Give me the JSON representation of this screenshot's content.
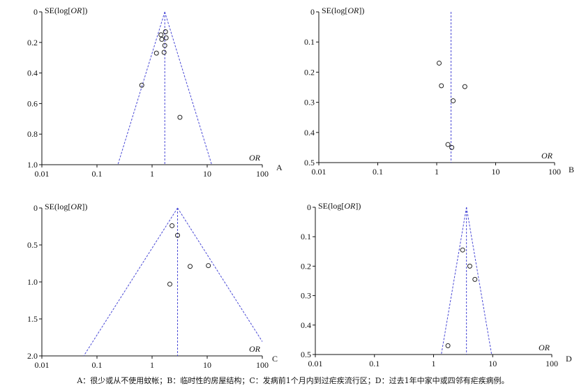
{
  "caption": "A：很少或从不使用蚊帐；B：临时性的房屋结构；C：发病前1个月内到过疟疾流行区；D：过去1年中家中或四邻有疟疾病例。",
  "colors": {
    "axis": "#111111",
    "guide": "#4a4ad6",
    "point": "#222222"
  },
  "chart_data": [
    {
      "type": "scatter",
      "panel": "A",
      "xscale": "log",
      "xlim": [
        0.01,
        100
      ],
      "x_ticks": [
        "0.01",
        "0.1",
        "1",
        "10",
        "100"
      ],
      "ylim": [
        0,
        1.0
      ],
      "y_ticks": [
        "0",
        "0.2",
        "0.4",
        "0.6",
        "0.8",
        "1.0"
      ],
      "y_inverted": true,
      "xlabel": "OR",
      "ylabel": "SE(log[OR])",
      "pooled_or": 1.7,
      "funnel": true,
      "points": [
        {
          "x": 1.45,
          "y": 0.15
        },
        {
          "x": 1.75,
          "y": 0.13
        },
        {
          "x": 1.5,
          "y": 0.18
        },
        {
          "x": 1.8,
          "y": 0.17
        },
        {
          "x": 1.7,
          "y": 0.22
        },
        {
          "x": 1.2,
          "y": 0.27
        },
        {
          "x": 1.65,
          "y": 0.265
        },
        {
          "x": 0.65,
          "y": 0.48
        },
        {
          "x": 3.2,
          "y": 0.69
        }
      ]
    },
    {
      "type": "scatter",
      "panel": "B",
      "xscale": "log",
      "xlim": [
        0.01,
        100
      ],
      "x_ticks": [
        "0.01",
        "0.1",
        "1",
        "10",
        "100"
      ],
      "ylim": [
        0,
        0.5
      ],
      "y_ticks": [
        "0",
        "0.1",
        "0.2",
        "0.3",
        "0.4",
        "0.5"
      ],
      "y_inverted": true,
      "xlabel": "OR",
      "ylabel": "SE(log[OR])",
      "pooled_or": 1.75,
      "funnel": false,
      "points": [
        {
          "x": 1.1,
          "y": 0.17
        },
        {
          "x": 1.2,
          "y": 0.245
        },
        {
          "x": 3.0,
          "y": 0.248
        },
        {
          "x": 1.9,
          "y": 0.295
        },
        {
          "x": 1.55,
          "y": 0.44
        },
        {
          "x": 1.8,
          "y": 0.45
        }
      ]
    },
    {
      "type": "scatter",
      "panel": "C",
      "xscale": "log",
      "xlim": [
        0.01,
        100
      ],
      "x_ticks": [
        "0.01",
        "0.1",
        "1",
        "10",
        "100"
      ],
      "ylim": [
        0,
        2.0
      ],
      "y_ticks": [
        "0",
        "0.5",
        "1.0",
        "1.5",
        "2.0"
      ],
      "y_inverted": true,
      "xlabel": "OR",
      "ylabel": "SE(log[OR])",
      "pooled_or": 2.9,
      "funnel": true,
      "points": [
        {
          "x": 2.3,
          "y": 0.24
        },
        {
          "x": 2.9,
          "y": 0.37
        },
        {
          "x": 4.9,
          "y": 0.79
        },
        {
          "x": 10.5,
          "y": 0.78
        },
        {
          "x": 2.1,
          "y": 1.03
        }
      ]
    },
    {
      "type": "scatter",
      "panel": "D",
      "xscale": "log",
      "xlim": [
        0.01,
        100
      ],
      "x_ticks": [
        "0.01",
        "0.1",
        "1",
        "10",
        "100"
      ],
      "ylim": [
        0,
        0.5
      ],
      "y_ticks": [
        "0",
        "0.1",
        "0.2",
        "0.3",
        "0.4",
        "0.5"
      ],
      "y_inverted": true,
      "xlabel": "OR",
      "ylabel": "SE(log[OR])",
      "pooled_or": 3.6,
      "funnel": true,
      "points": [
        {
          "x": 3.1,
          "y": 0.145
        },
        {
          "x": 4.1,
          "y": 0.2
        },
        {
          "x": 5.0,
          "y": 0.245
        },
        {
          "x": 1.75,
          "y": 0.47
        }
      ]
    }
  ]
}
